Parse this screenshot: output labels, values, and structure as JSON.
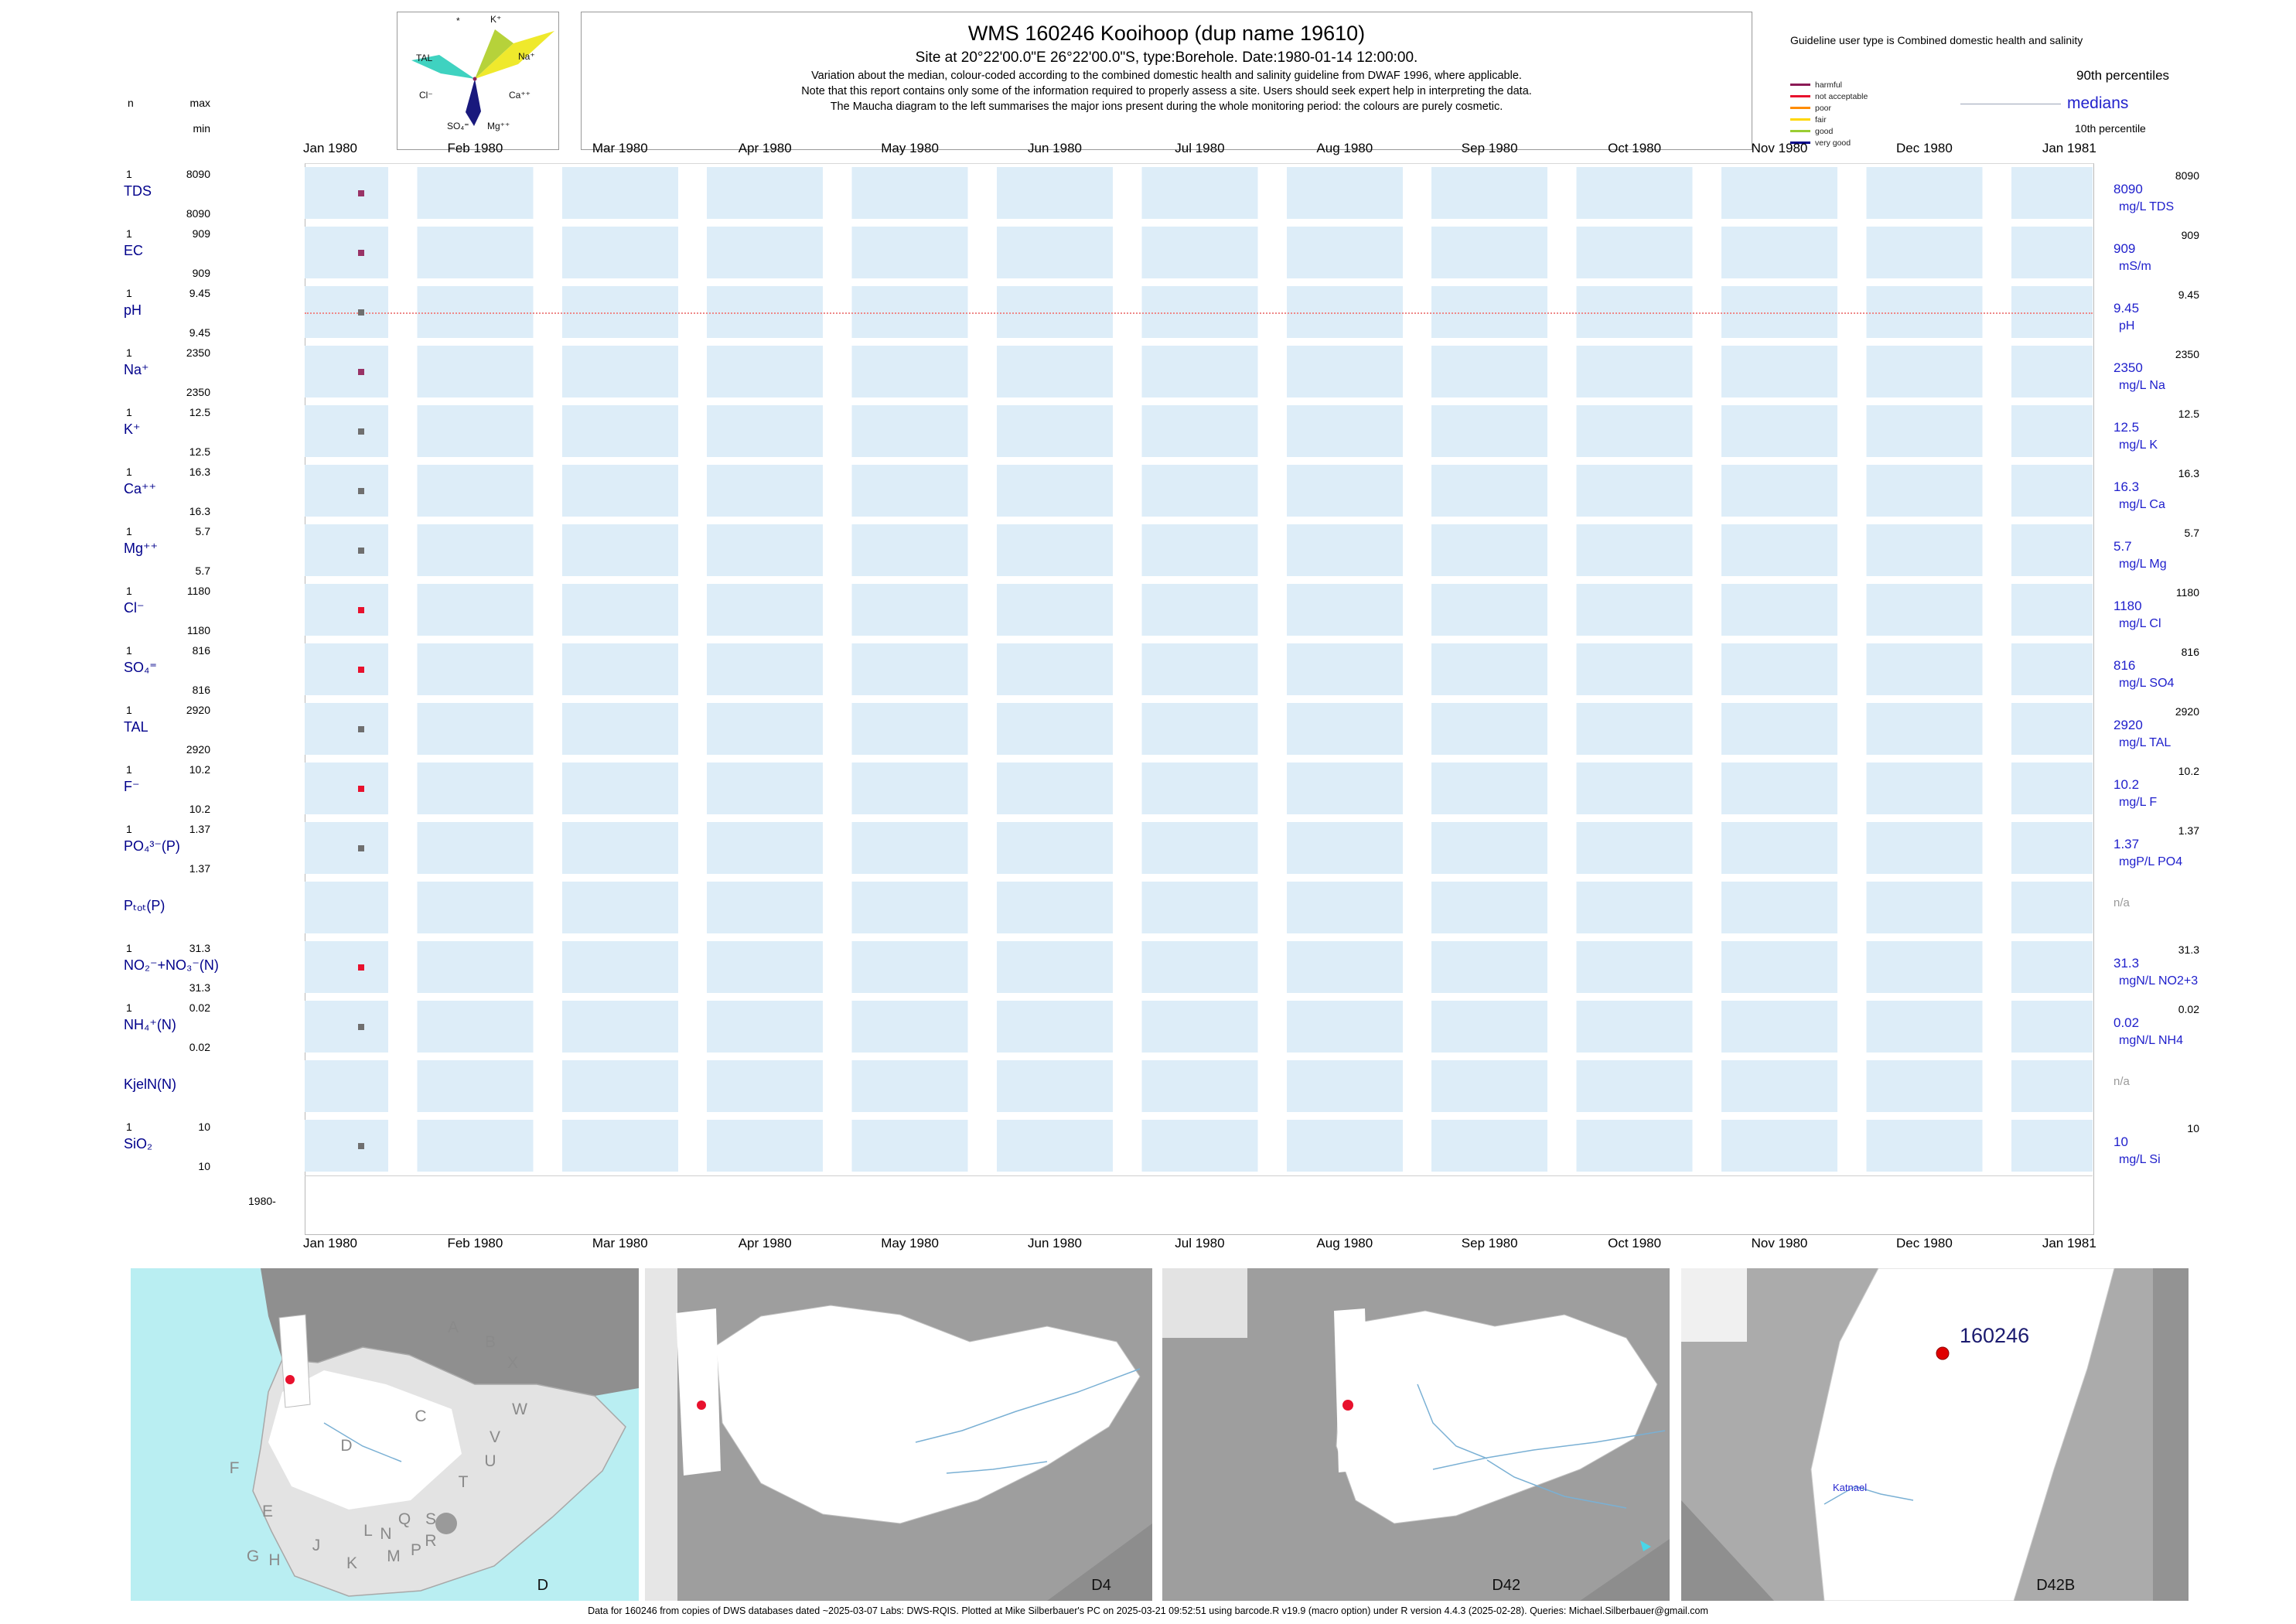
{
  "page": {
    "title": "WMS 160246  Kooihoop (dup name 19610)",
    "subtitle": "Site at 20°22'00.0\"E 26°22'00.0\"S, type:Borehole. Date:1980-01-14 12:00:00.",
    "note1": "Variation about the median,  colour-coded according to the combined domestic health and salinity guideline from DWAF 1996, where applicable.",
    "note2": "Note that this report contains only some of the information required to properly assess a site. Users should seek expert help in interpreting the data.",
    "note3": "The Maucha diagram to the left summarises the major ions present during the whole monitoring period: the colours are purely cosmetic.",
    "footer": "Data for 160246 from copies of DWS databases dated ~2025-03-07 Labs: DWS-RQIS. Plotted at Mike Silberbauer's PC on 2025-03-21 09:52:51 using barcode.R v19.9 (macro option) under R version 4.4.3 (2025-02-28). Queries: Michael.Silberbauer@gmail.com"
  },
  "maucha": {
    "ion_labels": {
      "asterisk": "*",
      "k": "K⁺",
      "tal": "TAL",
      "na": "Na⁺",
      "cl": "Cl⁻",
      "ca": "Ca⁺⁺",
      "so4": "SO₄⁼",
      "mg": "Mg⁺⁺"
    }
  },
  "legend": {
    "title": "Guideline user type is Combined domestic health and salinity",
    "classes": [
      {
        "label": "harmful",
        "color": "#8b1a55"
      },
      {
        "label": "not acceptable",
        "color": "#e8112d"
      },
      {
        "label": "poor",
        "color": "#ff8c00"
      },
      {
        "label": "fair",
        "color": "#ffd700"
      },
      {
        "label": "good",
        "color": "#9acd32"
      },
      {
        "label": "very good",
        "color": "#00008b"
      }
    ],
    "p90_label": "90th percentiles",
    "median_label": "medians",
    "p10_label": "10th percentile"
  },
  "stats_header": {
    "n": "n",
    "max": "max",
    "min": "min"
  },
  "months": [
    "Jan 1980",
    "Feb 1980",
    "Mar 1980",
    "Apr 1980",
    "May 1980",
    "Jun 1980",
    "Jul 1980",
    "Aug 1980",
    "Sep 1980",
    "Oct 1980",
    "Nov 1980",
    "Dec 1980",
    "Jan 1981"
  ],
  "year_label": "1980-",
  "rows": [
    {
      "name": "TDS",
      "n": "1",
      "max": "8090",
      "min": "8090",
      "p90": "8090",
      "median": "8090",
      "unit": "mg/L TDS",
      "point_color": "#993366",
      "dashed": false,
      "has_data": true
    },
    {
      "name": "EC",
      "n": "1",
      "max": "909",
      "min": "909",
      "p90": "909",
      "median": "909",
      "unit": "mS/m",
      "point_color": "#993366",
      "dashed": false,
      "has_data": true
    },
    {
      "name": "pH",
      "n": "1",
      "max": "9.45",
      "min": "9.45",
      "p90": "9.45",
      "median": "9.45",
      "unit": "pH",
      "point_color": "#6f6f6f",
      "dashed": true,
      "has_data": true
    },
    {
      "name": "Na⁺",
      "n": "1",
      "max": "2350",
      "min": "2350",
      "p90": "2350",
      "median": "2350",
      "unit": "mg/L Na",
      "point_color": "#993366",
      "dashed": false,
      "has_data": true
    },
    {
      "name": "K⁺",
      "n": "1",
      "max": "12.5",
      "min": "12.5",
      "p90": "12.5",
      "median": "12.5",
      "unit": "mg/L K",
      "point_color": "#6f6f6f",
      "dashed": false,
      "has_data": true
    },
    {
      "name": "Ca⁺⁺",
      "n": "1",
      "max": "16.3",
      "min": "16.3",
      "p90": "16.3",
      "median": "16.3",
      "unit": "mg/L Ca",
      "point_color": "#6f6f6f",
      "dashed": false,
      "has_data": true
    },
    {
      "name": "Mg⁺⁺",
      "n": "1",
      "max": "5.7",
      "min": "5.7",
      "p90": "5.7",
      "median": "5.7",
      "unit": "mg/L Mg",
      "point_color": "#6f6f6f",
      "dashed": false,
      "has_data": true
    },
    {
      "name": "Cl⁻",
      "n": "1",
      "max": "1180",
      "min": "1180",
      "p90": "1180",
      "median": "1180",
      "unit": "mg/L Cl",
      "point_color": "#e8112d",
      "dashed": false,
      "has_data": true
    },
    {
      "name": "SO₄⁼",
      "n": "1",
      "max": "816",
      "min": "816",
      "p90": "816",
      "median": "816",
      "unit": "mg/L SO4",
      "point_color": "#e8112d",
      "dashed": false,
      "has_data": true
    },
    {
      "name": "TAL",
      "n": "1",
      "max": "2920",
      "min": "2920",
      "p90": "2920",
      "median": "2920",
      "unit": "mg/L TAL",
      "point_color": "#6f6f6f",
      "dashed": false,
      "has_data": true
    },
    {
      "name": "F⁻",
      "n": "1",
      "max": "10.2",
      "min": "10.2",
      "p90": "10.2",
      "median": "10.2",
      "unit": "mg/L F",
      "point_color": "#e8112d",
      "dashed": false,
      "has_data": true
    },
    {
      "name": "PO₄³⁻(P)",
      "n": "1",
      "max": "1.37",
      "min": "1.37",
      "p90": "1.37",
      "median": "1.37",
      "unit": "mgP/L PO4",
      "point_color": "#6f6f6f",
      "dashed": false,
      "has_data": true
    },
    {
      "name": "Pₜₒₜ(P)",
      "n": "",
      "max": "",
      "min": "",
      "p90": "",
      "median": "n/a",
      "unit": "",
      "point_color": null,
      "dashed": false,
      "has_data": false
    },
    {
      "name": "NO₂⁻+NO₃⁻(N)",
      "n": "1",
      "max": "31.3",
      "min": "31.3",
      "p90": "31.3",
      "median": "31.3",
      "unit": "mgN/L NO2+3",
      "point_color": "#e8112d",
      "dashed": false,
      "has_data": true
    },
    {
      "name": "NH₄⁺(N)",
      "n": "1",
      "max": "0.02",
      "min": "0.02",
      "p90": "0.02",
      "median": "0.02",
      "unit": "mgN/L NH4",
      "point_color": "#6f6f6f",
      "dashed": false,
      "has_data": true
    },
    {
      "name": "KjelN(N)",
      "n": "",
      "max": "",
      "min": "",
      "p90": "",
      "median": "n/a",
      "unit": "",
      "point_color": null,
      "dashed": false,
      "has_data": false
    },
    {
      "name": "SiO₂",
      "n": "1",
      "max": "10",
      "min": "10",
      "p90": "10",
      "median": "10",
      "unit": "mg/L Si",
      "point_color": "#6f6f6f",
      "dashed": false,
      "has_data": true
    }
  ],
  "maps": {
    "panels": [
      {
        "label": "D"
      },
      {
        "label": "D4"
      },
      {
        "label": "D42"
      },
      {
        "label": "D42B",
        "station": "160246",
        "place": "Katnael"
      }
    ],
    "region_letters": [
      "A",
      "B",
      "X",
      "W",
      "C",
      "V",
      "U",
      "D",
      "T",
      "S",
      "Q",
      "R",
      "L",
      "N",
      "M",
      "P",
      "E",
      "F",
      "G",
      "H",
      "J",
      "K"
    ]
  },
  "chart_data": {
    "type": "scatter",
    "title": "WMS 160246 Kooihoop (dup name 19610)",
    "site": "20°22'00.0\"E 26°22'00.0\"S, Borehole",
    "sample_datetime": "1980-01-14 12:00:00",
    "x_ticks": [
      "Jan 1980",
      "Feb 1980",
      "Mar 1980",
      "Apr 1980",
      "May 1980",
      "Jun 1980",
      "Jul 1980",
      "Aug 1980",
      "Sep 1980",
      "Oct 1980",
      "Nov 1980",
      "Dec 1980",
      "Jan 1981"
    ],
    "x_range": [
      "Jan 1980",
      "Jan 1981"
    ],
    "legend_position": "top-right",
    "grid": "monthly shaded bands",
    "series": [
      {
        "parameter": "TDS",
        "unit": "mg/L",
        "n": 1,
        "min": 8090,
        "max": 8090,
        "median": 8090,
        "p90": 8090,
        "points": [
          {
            "x": "1980-01-14",
            "y": 8090
          }
        ],
        "guideline_class": "harmful"
      },
      {
        "parameter": "EC",
        "unit": "mS/m",
        "n": 1,
        "min": 909,
        "max": 909,
        "median": 909,
        "p90": 909,
        "points": [
          {
            "x": "1980-01-14",
            "y": 909
          }
        ],
        "guideline_class": "harmful"
      },
      {
        "parameter": "pH",
        "unit": "pH",
        "n": 1,
        "min": 9.45,
        "max": 9.45,
        "median": 9.45,
        "p90": 9.45,
        "points": [
          {
            "x": "1980-01-14",
            "y": 9.45
          }
        ],
        "guideline_class": null
      },
      {
        "parameter": "Na",
        "unit": "mg/L",
        "n": 1,
        "min": 2350,
        "max": 2350,
        "median": 2350,
        "p90": 2350,
        "points": [
          {
            "x": "1980-01-14",
            "y": 2350
          }
        ],
        "guideline_class": "harmful"
      },
      {
        "parameter": "K",
        "unit": "mg/L",
        "n": 1,
        "min": 12.5,
        "max": 12.5,
        "median": 12.5,
        "p90": 12.5,
        "points": [
          {
            "x": "1980-01-14",
            "y": 12.5
          }
        ],
        "guideline_class": null
      },
      {
        "parameter": "Ca",
        "unit": "mg/L",
        "n": 1,
        "min": 16.3,
        "max": 16.3,
        "median": 16.3,
        "p90": 16.3,
        "points": [
          {
            "x": "1980-01-14",
            "y": 16.3
          }
        ],
        "guideline_class": null
      },
      {
        "parameter": "Mg",
        "unit": "mg/L",
        "n": 1,
        "min": 5.7,
        "max": 5.7,
        "median": 5.7,
        "p90": 5.7,
        "points": [
          {
            "x": "1980-01-14",
            "y": 5.7
          }
        ],
        "guideline_class": null
      },
      {
        "parameter": "Cl",
        "unit": "mg/L",
        "n": 1,
        "min": 1180,
        "max": 1180,
        "median": 1180,
        "p90": 1180,
        "points": [
          {
            "x": "1980-01-14",
            "y": 1180
          }
        ],
        "guideline_class": "not acceptable"
      },
      {
        "parameter": "SO4",
        "unit": "mg/L",
        "n": 1,
        "min": 816,
        "max": 816,
        "median": 816,
        "p90": 816,
        "points": [
          {
            "x": "1980-01-14",
            "y": 816
          }
        ],
        "guideline_class": "not acceptable"
      },
      {
        "parameter": "TAL",
        "unit": "mg/L",
        "n": 1,
        "min": 2920,
        "max": 2920,
        "median": 2920,
        "p90": 2920,
        "points": [
          {
            "x": "1980-01-14",
            "y": 2920
          }
        ],
        "guideline_class": null
      },
      {
        "parameter": "F",
        "unit": "mg/L",
        "n": 1,
        "min": 10.2,
        "max": 10.2,
        "median": 10.2,
        "p90": 10.2,
        "points": [
          {
            "x": "1980-01-14",
            "y": 10.2
          }
        ],
        "guideline_class": "not acceptable"
      },
      {
        "parameter": "PO4-P",
        "unit": "mgP/L",
        "n": 1,
        "min": 1.37,
        "max": 1.37,
        "median": 1.37,
        "p90": 1.37,
        "points": [
          {
            "x": "1980-01-14",
            "y": 1.37
          }
        ],
        "guideline_class": null
      },
      {
        "parameter": "Ptot-P",
        "unit": "",
        "n": 0,
        "min": null,
        "max": null,
        "median": null,
        "p90": null,
        "points": [],
        "guideline_class": null
      },
      {
        "parameter": "NO2+NO3-N",
        "unit": "mgN/L",
        "n": 1,
        "min": 31.3,
        "max": 31.3,
        "median": 31.3,
        "p90": 31.3,
        "points": [
          {
            "x": "1980-01-14",
            "y": 31.3
          }
        ],
        "guideline_class": "not acceptable"
      },
      {
        "parameter": "NH4-N",
        "unit": "mgN/L",
        "n": 1,
        "min": 0.02,
        "max": 0.02,
        "median": 0.02,
        "p90": 0.02,
        "points": [
          {
            "x": "1980-01-14",
            "y": 0.02
          }
        ],
        "guideline_class": null
      },
      {
        "parameter": "KjelN-N",
        "unit": "",
        "n": 0,
        "min": null,
        "max": null,
        "median": null,
        "p90": null,
        "points": [],
        "guideline_class": null
      },
      {
        "parameter": "Si",
        "unit": "mg/L",
        "n": 1,
        "min": 10,
        "max": 10,
        "median": 10,
        "p90": 10,
        "points": [
          {
            "x": "1980-01-14",
            "y": 10
          }
        ],
        "guideline_class": null
      }
    ]
  }
}
